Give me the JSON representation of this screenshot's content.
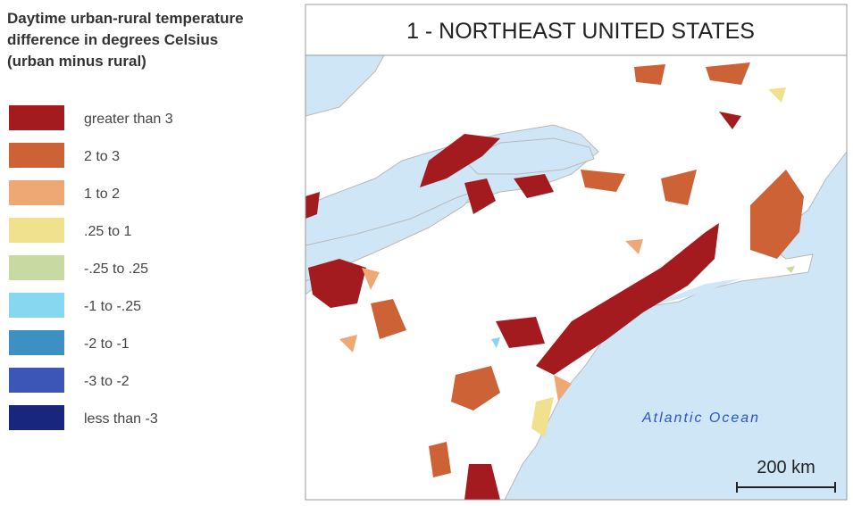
{
  "legend": {
    "title_lines": [
      "Daytime urban-rural temperature",
      "difference in degrees Celsius",
      "(urban minus rural)"
    ],
    "items": [
      {
        "label": "greater than 3",
        "color": "#a31b1f"
      },
      {
        "label": "2 to 3",
        "color": "#cc6236"
      },
      {
        "label": "1 to 2",
        "color": "#eda873"
      },
      {
        "label": ".25 to 1",
        "color": "#f0e18e"
      },
      {
        "label": "-.25 to .25",
        "color": "#c8d9a2"
      },
      {
        "label": "-1 to -.25",
        "color": "#86d7ef"
      },
      {
        "label": "-2 to -1",
        "color": "#3c91c2"
      },
      {
        "label": "-3 to -2",
        "color": "#3c56b8"
      },
      {
        "label": "less than -3",
        "color": "#18267d"
      }
    ]
  },
  "map": {
    "title": "1  -  NORTHEAST UNITED STATES",
    "ocean_label": "Atlantic Ocean",
    "scale_label": "200 km"
  }
}
